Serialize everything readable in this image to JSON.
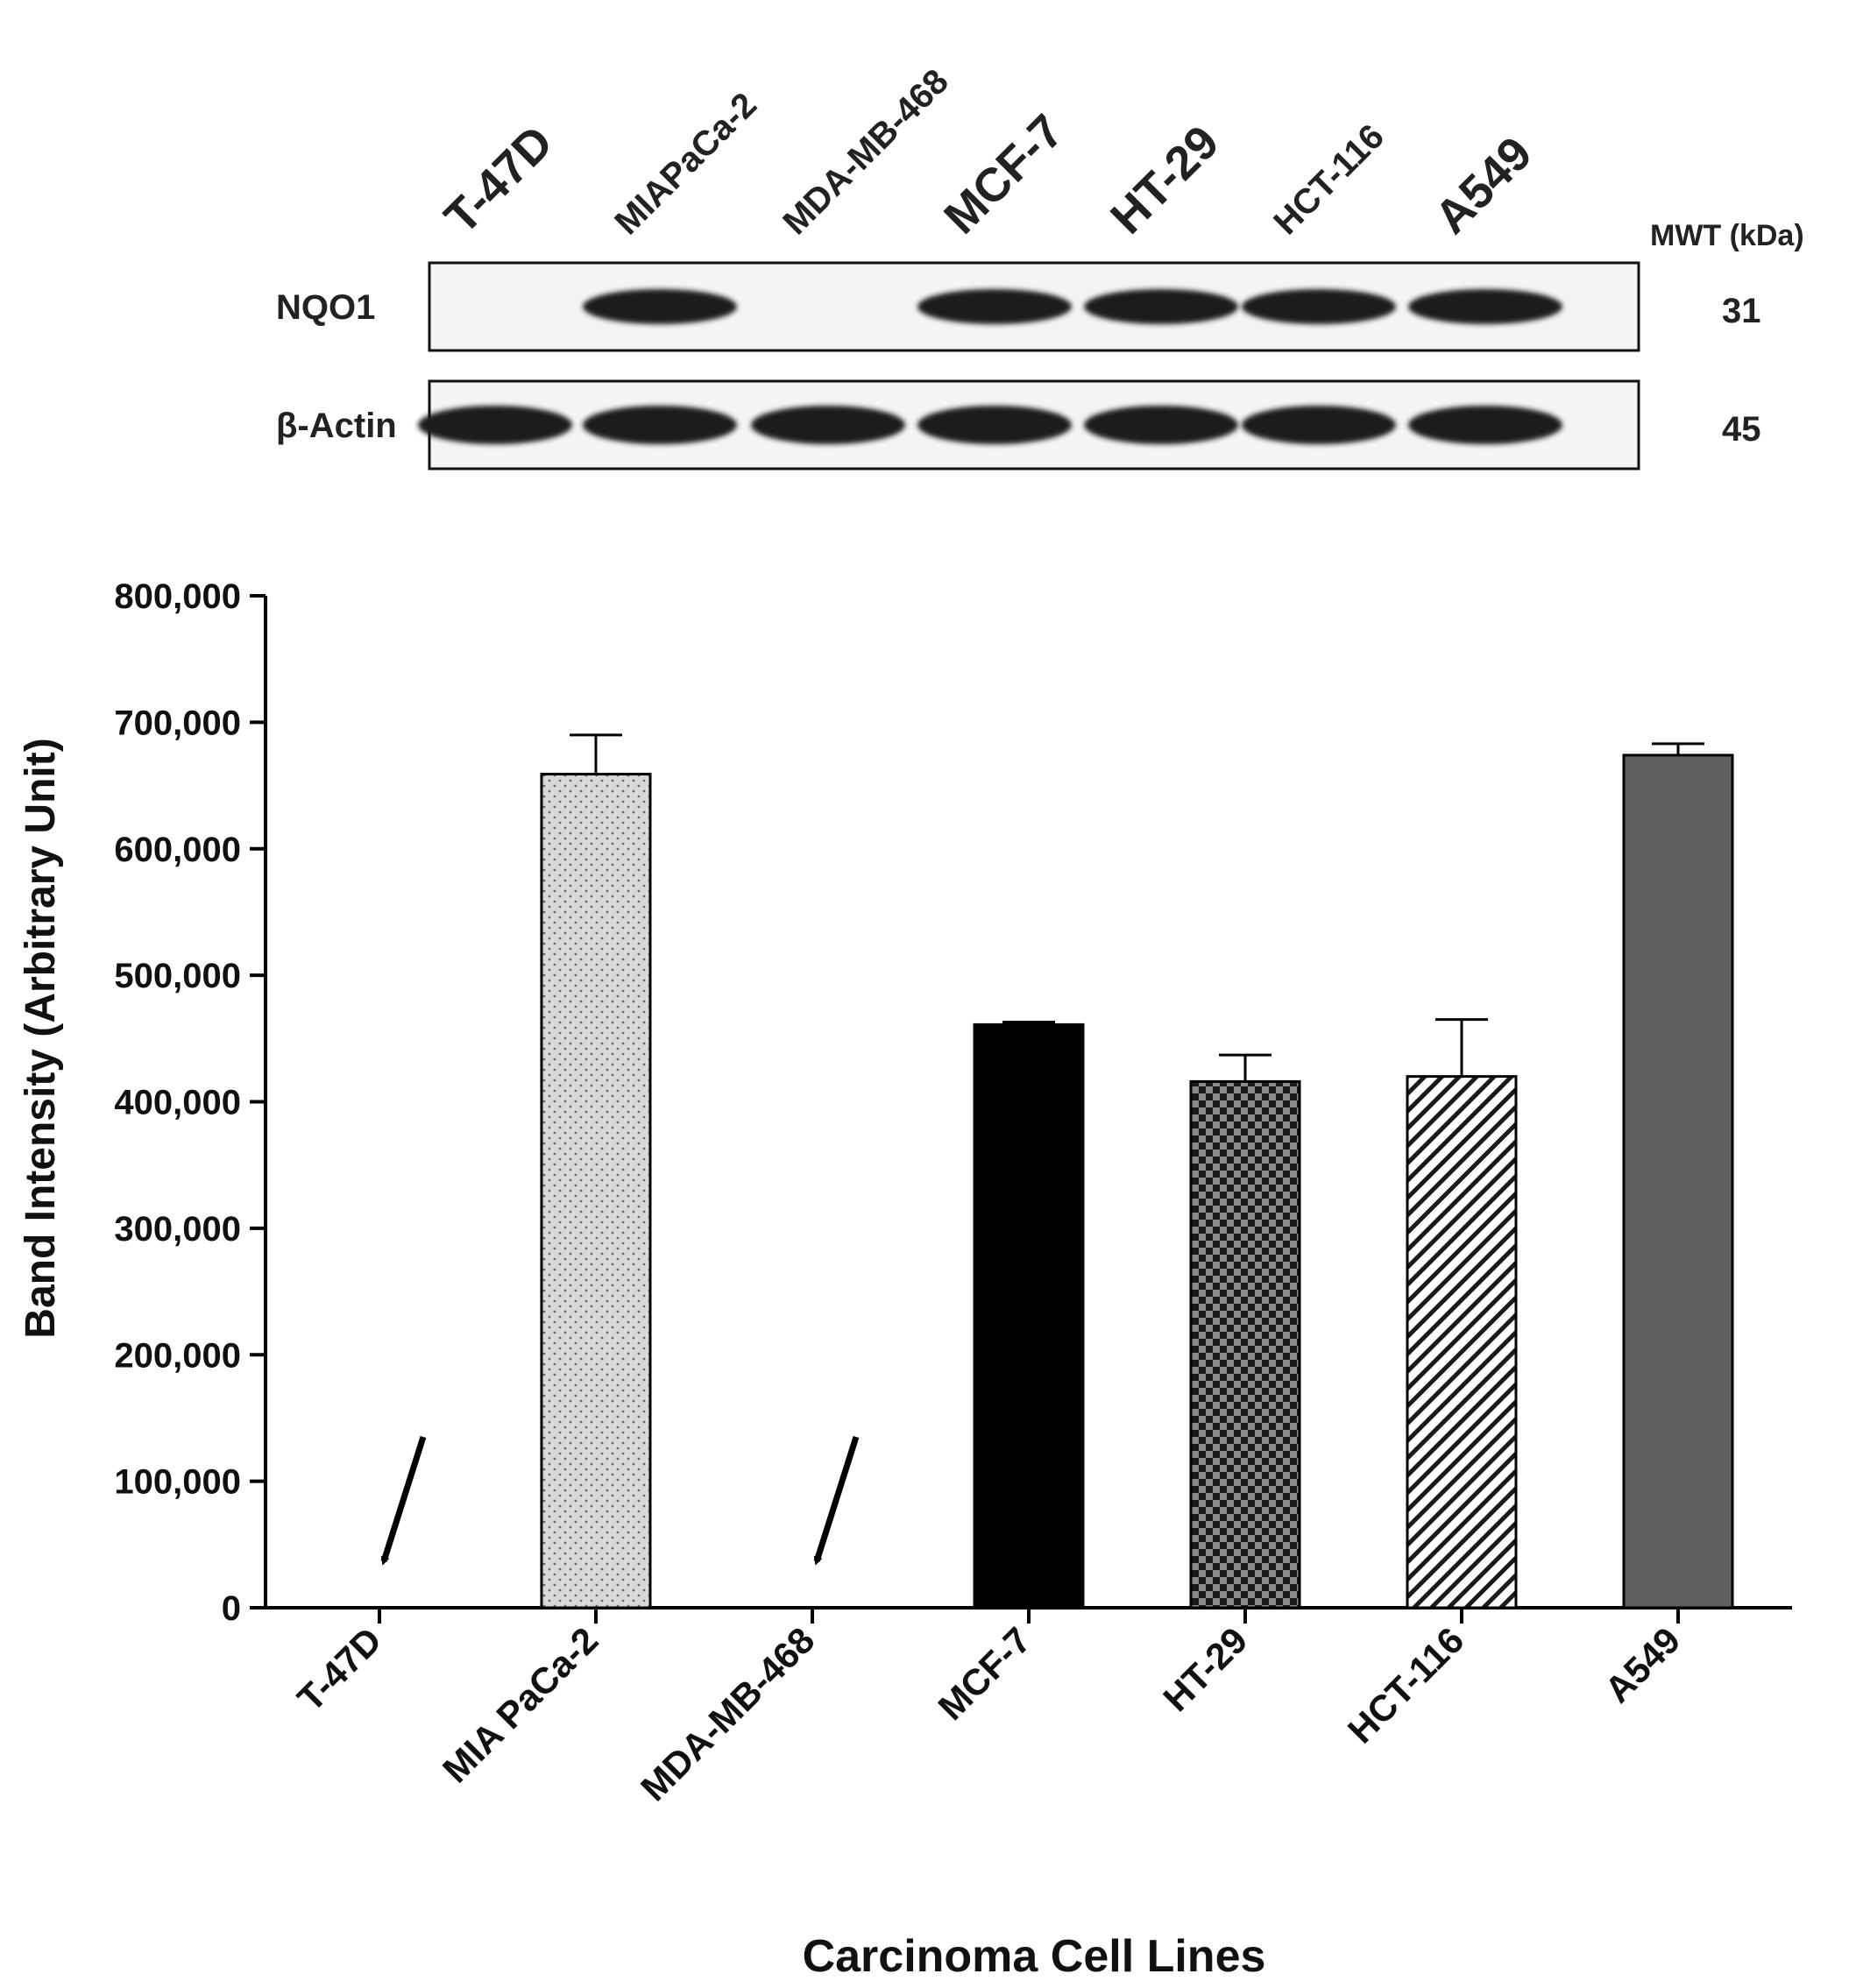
{
  "blot": {
    "lane_labels": [
      "T-47D",
      "MIAPaCa-2",
      "MDA-MB-468",
      "MCF-7",
      "HT-29",
      "HCT-116",
      "A549"
    ],
    "mwt_header": "MWT (kDa)",
    "rows": [
      {
        "label": "NQO1",
        "mwt": "31",
        "band_present": [
          false,
          true,
          false,
          true,
          true,
          true,
          true
        ]
      },
      {
        "label": "β-Actin",
        "mwt": "45",
        "band_present": [
          true,
          true,
          true,
          true,
          true,
          true,
          true
        ]
      }
    ]
  },
  "chart_data": {
    "type": "bar",
    "title": "",
    "xlabel": "Carcinoma Cell Lines",
    "ylabel": "Band Intensity (Arbitrary Unit)",
    "categories": [
      "T-47D",
      "MIA PaCa-2",
      "MDA-MB-468",
      "MCF-7",
      "HT-29",
      "HCT-116",
      "A549"
    ],
    "values": [
      0,
      659000,
      0,
      461000,
      416000,
      420000,
      674000
    ],
    "errors": [
      0,
      31000,
      0,
      2000,
      21000,
      45000,
      9000
    ],
    "patterns": [
      "none",
      "dots",
      "none",
      "solid-black",
      "checker",
      "hatch",
      "solid-gray"
    ],
    "arrows_at": [
      "T-47D",
      "MDA-MB-468"
    ],
    "ylim": [
      0,
      800000
    ],
    "yticks": [
      0,
      100000,
      200000,
      300000,
      400000,
      500000,
      600000,
      700000,
      800000
    ],
    "ytick_labels": [
      "0",
      "100,000",
      "200,000",
      "300,000",
      "400,000",
      "500,000",
      "600,000",
      "700,000",
      "800,000"
    ],
    "grid": false,
    "legend": "none"
  }
}
